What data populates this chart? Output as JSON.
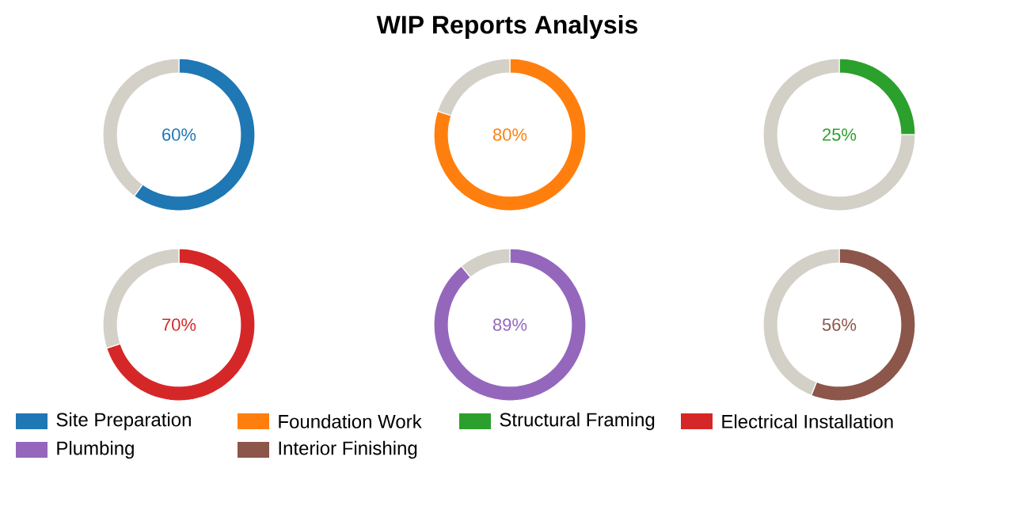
{
  "chart_data": [
    {
      "type": "donut",
      "categories": [
        "Site Preparation",
        null
      ],
      "values": [
        60,
        40
      ],
      "colors": [
        "#1f77b4",
        "#d3d0c8"
      ],
      "value_labels": [
        "60%",
        null
      ],
      "legend": "bottom"
    },
    {
      "type": "donut",
      "title": "WIP Reports Analysis",
      "categories": [
        "Foundation Work",
        null
      ],
      "values": [
        80,
        20
      ],
      "colors": [
        "#ff7f0e",
        "#d3d0c8"
      ],
      "value_labels": [
        "80%",
        null
      ],
      "legend": "bottom"
    },
    {
      "type": "donut",
      "categories": [
        "Structural Framing",
        null
      ],
      "values": [
        25,
        75
      ],
      "colors": [
        "#2ca02c",
        "#d3d0c8"
      ],
      "value_labels": [
        "25%",
        null
      ],
      "legend": "bottom"
    },
    {
      "type": "donut",
      "categories": [
        "Electrical Installation",
        null
      ],
      "values": [
        70,
        30
      ],
      "colors": [
        "#d62728",
        "#d3d0c8"
      ],
      "value_labels": [
        "70%",
        null
      ],
      "legend": "bottom"
    },
    {
      "type": "donut",
      "categories": [
        "Plumbing",
        null
      ],
      "values": [
        89,
        11
      ],
      "colors": [
        "#9467bd",
        "#d3d0c8"
      ],
      "value_labels": [
        "89%",
        null
      ],
      "legend": "bottom"
    },
    {
      "type": "donut",
      "categories": [
        "Interior Finishing",
        null
      ],
      "values": [
        56,
        44
      ],
      "colors": [
        "#8c564b",
        "#d3d0c8"
      ],
      "value_labels": [
        "56%",
        null
      ],
      "legend": "bottom"
    }
  ]
}
